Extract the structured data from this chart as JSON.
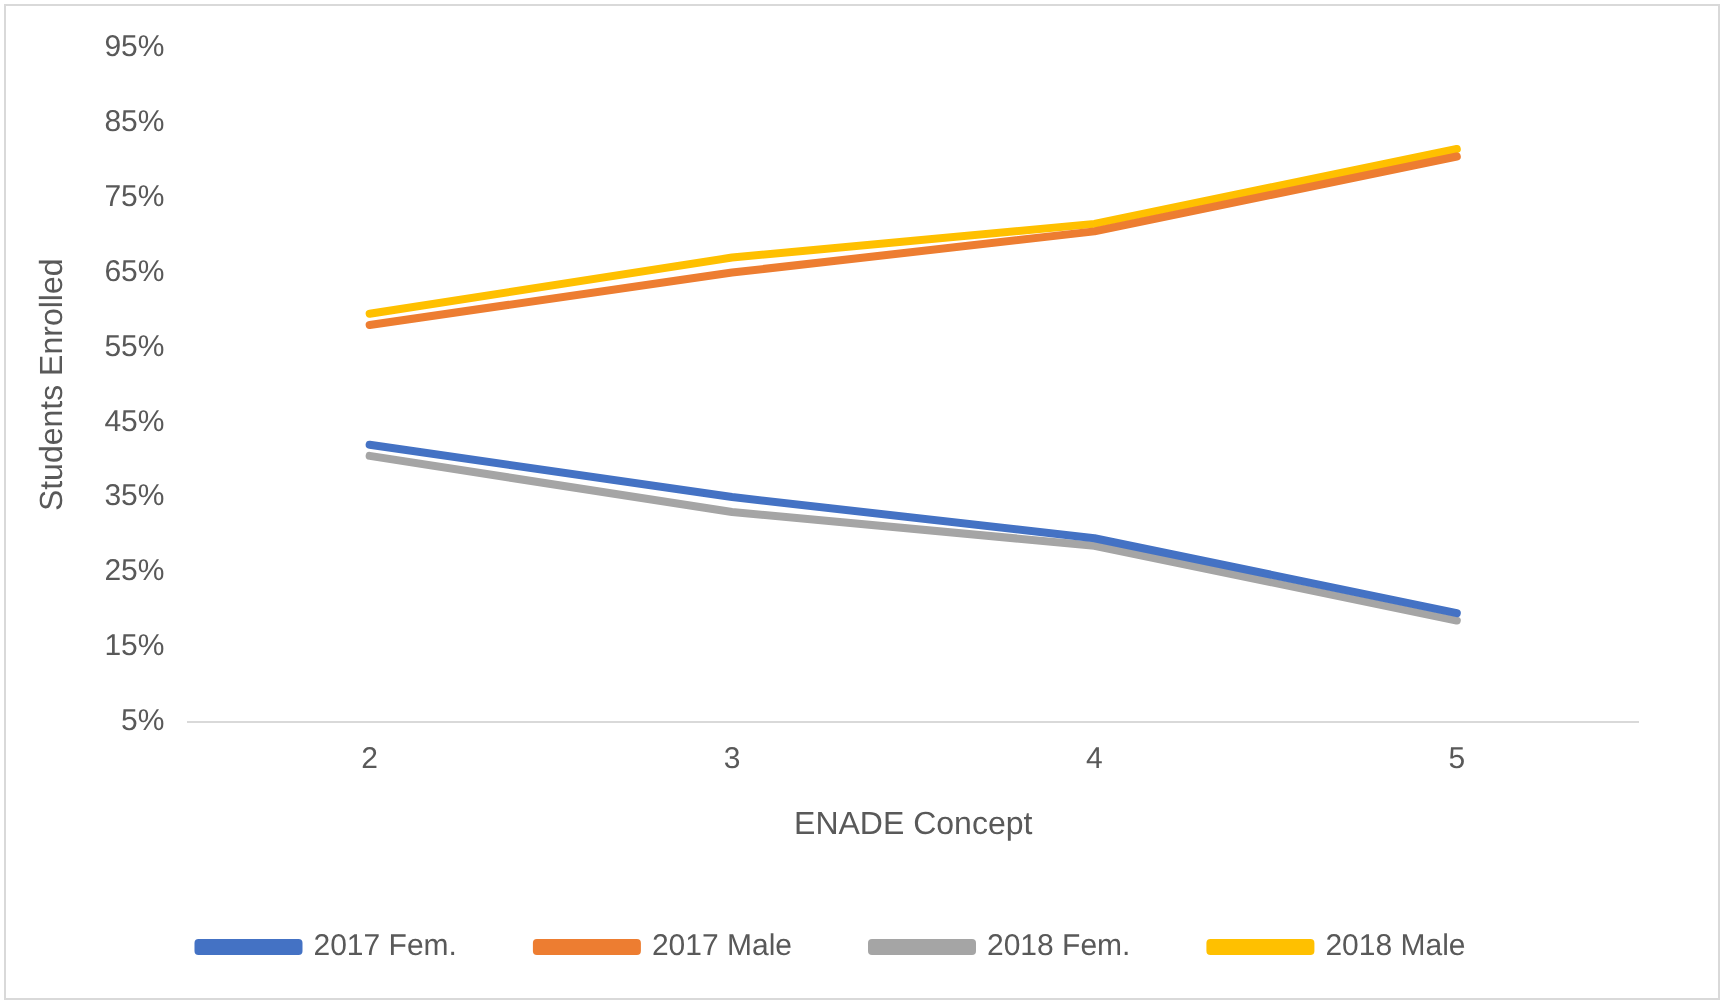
{
  "chart_data": {
    "type": "line",
    "xlabel": "ENADE Concept",
    "ylabel": "Students Enrolled",
    "categories": [
      "2",
      "3",
      "4",
      "5"
    ],
    "series": [
      {
        "name": "2017 Fem.",
        "color": "#4472c4",
        "values": [
          42,
          35,
          29.5,
          19.5
        ]
      },
      {
        "name": "2017 Male",
        "color": "#ed7d31",
        "values": [
          58,
          65,
          70.5,
          80.5
        ]
      },
      {
        "name": "2018 Fem.",
        "color": "#a5a5a5",
        "values": [
          40.5,
          33,
          28.5,
          18.5
        ]
      },
      {
        "name": "2018 Male",
        "color": "#ffc000",
        "values": [
          59.5,
          67,
          71.5,
          81.5
        ]
      }
    ],
    "ylim": [
      5,
      95
    ],
    "yticks": [
      {
        "value": 5,
        "label": "5%"
      },
      {
        "value": 15,
        "label": "15%"
      },
      {
        "value": 25,
        "label": "25%"
      },
      {
        "value": 35,
        "label": "35%"
      },
      {
        "value": 45,
        "label": "45%"
      },
      {
        "value": 55,
        "label": "55%"
      },
      {
        "value": 65,
        "label": "65%"
      },
      {
        "value": 75,
        "label": "75%"
      },
      {
        "value": 85,
        "label": "85%"
      },
      {
        "value": 95,
        "label": "95%"
      }
    ],
    "grid": false,
    "legend": "bottom",
    "marker": "none",
    "line_style": "solid"
  }
}
